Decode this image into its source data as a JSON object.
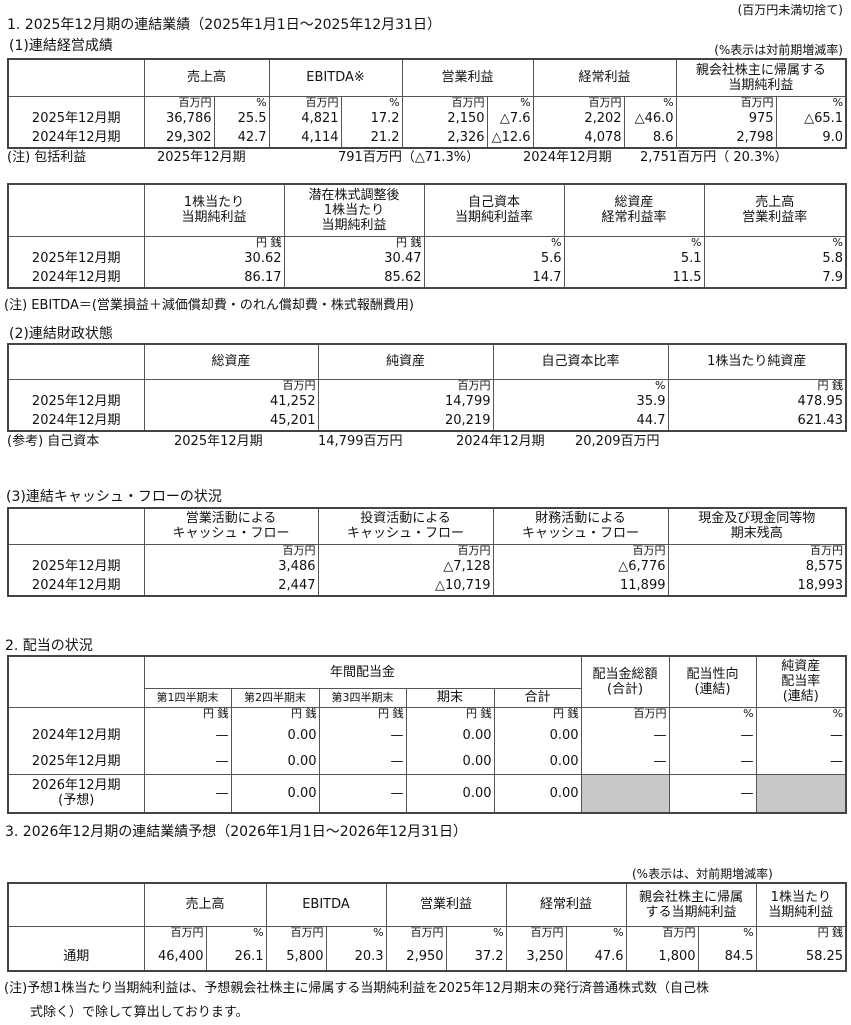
{
  "header_note": "(百万円未満切捨て)",
  "section1": {
    "title": "1. 2025年12月期の連結業績（2025年1月1日～2025年12月31日）",
    "sub1": "(1)連結経営成績",
    "change_note": "(%表示は対前期増減率)",
    "results": {
      "headers": [
        "売上高",
        "EBITDA※",
        "営業利益",
        "経常利益",
        "親会社株主に帰属する\n当期純利益"
      ],
      "units": [
        "百万円",
        "%",
        "百万円",
        "%",
        "百万円",
        "%",
        "百万円",
        "%",
        "百万円",
        "%"
      ],
      "rows": [
        {
          "period": "2025年12月期",
          "values": [
            "36,786",
            "25.5",
            "4,821",
            "17.2",
            "2,150",
            "△7.6",
            "2,202",
            "△46.0",
            "975",
            "△65.1"
          ]
        },
        {
          "period": "2024年12月期",
          "values": [
            "29,302",
            "42.7",
            "4,114",
            "21.2",
            "2,326",
            "△12.6",
            "4,078",
            "8.6",
            "2,798",
            "9.0"
          ]
        }
      ]
    },
    "comprehensive": {
      "label": "(注) 包括利益",
      "period1": "2025年12月期",
      "value1": "791百万円（△71.3%）",
      "period2": "2024年12月期",
      "value2": "2,751百万円（ 20.3%）"
    },
    "per_share": {
      "headers": [
        "1株当たり\n当期純利益",
        "潜在株式調整後\n1株当たり\n当期純利益",
        "自己資本\n当期純利益率",
        "総資産\n経常利益率",
        "売上高\n営業利益率"
      ],
      "units": [
        "円 銭",
        "円 銭",
        "%",
        "%",
        "%"
      ],
      "rows": [
        {
          "period": "2025年12月期",
          "values": [
            "30.62",
            "30.47",
            "5.6",
            "5.1",
            "5.8"
          ]
        },
        {
          "period": "2024年12月期",
          "values": [
            "86.17",
            "85.62",
            "14.7",
            "11.5",
            "7.9"
          ]
        }
      ]
    },
    "ebitda_note": "(注) EBITDA＝(営業損益＋減価償却費・のれん償却費・株式報酬費用)",
    "sub2": "(2)連結財政状態",
    "financial": {
      "headers": [
        "総資産",
        "純資産",
        "自己資本比率",
        "1株当たり純資産"
      ],
      "units": [
        "百万円",
        "百万円",
        "%",
        "円 銭"
      ],
      "rows": [
        {
          "period": "2025年12月期",
          "values": [
            "41,252",
            "14,799",
            "35.9",
            "478.95"
          ]
        },
        {
          "period": "2024年12月期",
          "values": [
            "45,201",
            "20,219",
            "44.7",
            "621.43"
          ]
        }
      ]
    },
    "equity_ref": {
      "label": "(参考) 自己資本",
      "period1": "2025年12月期",
      "value1": "14,799百万円",
      "period2": "2024年12月期",
      "value2": "20,209百万円"
    },
    "sub3": "(3)連結キャッシュ・フローの状況",
    "cashflow": {
      "headers": [
        "営業活動による\nキャッシュ・フロー",
        "投資活動による\nキャッシュ・フロー",
        "財務活動による\nキャッシュ・フロー",
        "現金及び現金同等物\n期末残高"
      ],
      "units": [
        "百万円",
        "百万円",
        "百万円",
        "百万円"
      ],
      "rows": [
        {
          "period": "2025年12月期",
          "values": [
            "3,486",
            "△7,128",
            "△6,776",
            "8,575"
          ]
        },
        {
          "period": "2024年12月期",
          "values": [
            "2,447",
            "△10,719",
            "11,899",
            "18,993"
          ]
        }
      ]
    }
  },
  "section2": {
    "title": "2. 配当の状況",
    "dividends": {
      "annual_header": "年間配当金",
      "sub_headers": [
        "第1四半期末",
        "第2四半期末",
        "第3四半期末",
        "期末",
        "合計"
      ],
      "other_headers": [
        "配当金総額\n(合計)",
        "配当性向\n(連結)",
        "純資産\n配当率\n(連結)"
      ],
      "units": [
        "円 銭",
        "円 銭",
        "円 銭",
        "円 銭",
        "円 銭",
        "百万円",
        "%",
        "%"
      ],
      "rows": [
        {
          "period": "2024年12月期",
          "values": [
            "—",
            "0.00",
            "—",
            "0.00",
            "0.00",
            "—",
            "—",
            "—"
          ]
        },
        {
          "period": "2025年12月期",
          "values": [
            "—",
            "0.00",
            "—",
            "0.00",
            "0.00",
            "—",
            "—",
            "—"
          ]
        },
        {
          "period": "2026年12月期\n(予想)",
          "values": [
            "—",
            "0.00",
            "—",
            "0.00",
            "0.00",
            "",
            "—",
            ""
          ]
        }
      ]
    }
  },
  "section3": {
    "title": "3. 2026年12月期の連結業績予想（2026年1月1日～2026年12月31日）",
    "change_note": "(%表示は、対前期増減率)",
    "forecast": {
      "headers": [
        "売上高",
        "EBITDA",
        "営業利益",
        "経常利益",
        "親会社株主に帰属\nする当期純利益",
        "1株当たり\n当期純利益"
      ],
      "units": [
        "百万円",
        "%",
        "百万円",
        "%",
        "百万円",
        "%",
        "百万円",
        "%",
        "百万円",
        "%",
        "円 銭"
      ],
      "rows": [
        {
          "period": "通期",
          "values": [
            "46,400",
            "26.1",
            "5,800",
            "20.3",
            "2,950",
            "37.2",
            "3,250",
            "47.6",
            "1,800",
            "84.5",
            "58.25"
          ]
        }
      ]
    },
    "note": "(注)予想1株当たり当期純利益は、予想親会社株主に帰属する当期純利益を2025年12月期末の発行済普通株式数（自己株\n　　式除く）で除して算出しております。"
  }
}
